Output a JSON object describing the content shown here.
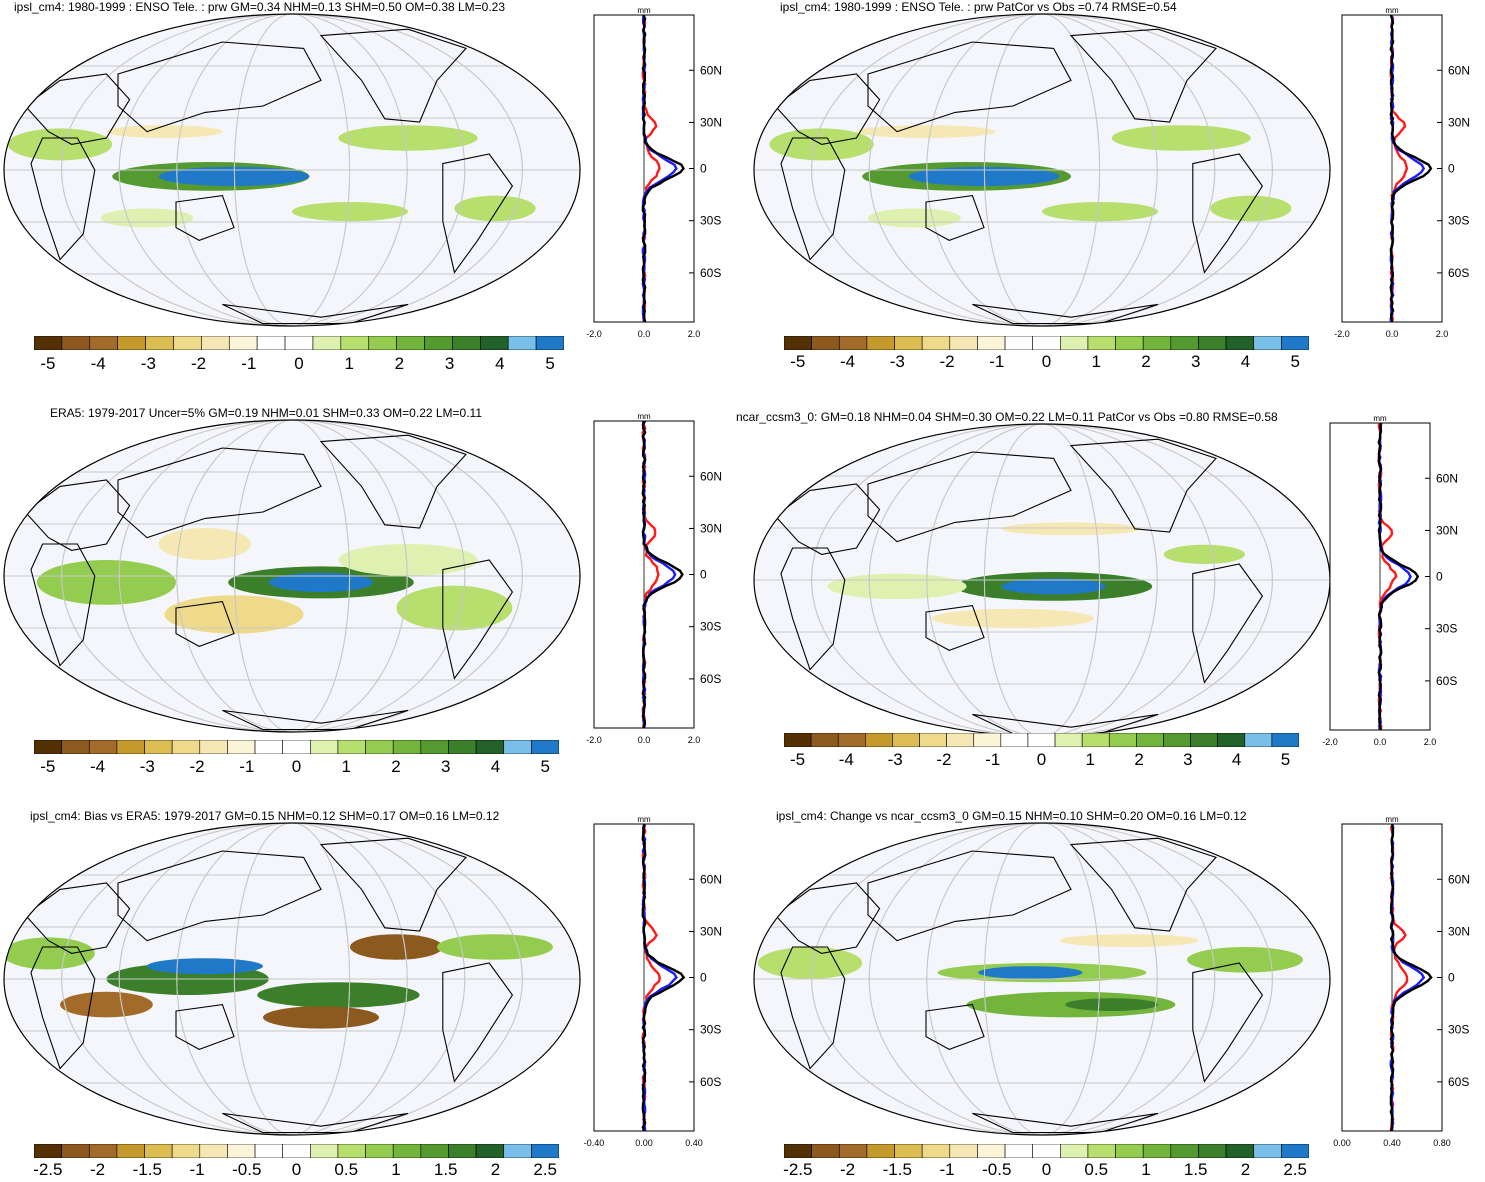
{
  "colors": {
    "bg": "#f5f6fb",
    "coast": "#000000",
    "grid": "#c8c8c8",
    "line_red": "#ff1a1a",
    "line_blue": "#1a1aff",
    "line_black": "#000000"
  },
  "colorbar_colors": [
    "#543005",
    "#8c5a1f",
    "#a36b29",
    "#c49a2c",
    "#dbbd53",
    "#efd98a",
    "#f6e8b5",
    "#fbf4d9",
    "#ffffff",
    "#ffffff",
    "#dff1b0",
    "#b7df6e",
    "#93cc4e",
    "#73b53c",
    "#549a31",
    "#3b7f2b",
    "#23612a",
    "#78bfea",
    "#1f78c8"
  ],
  "panels": [
    {
      "title": "ipsl_cm4: 1980-1999 : ENSO Tele. : prw GM=0.34 NHM=0.13 SHM=0.50 OM=0.38 LM=0.23",
      "colorbar_labels": [
        "-5",
        "-4",
        "-3",
        "-2",
        "-1",
        "0",
        "1",
        "2",
        "3",
        "4",
        "5"
      ],
      "zonal": {
        "unit": "mm",
        "x_ticks": [
          "-2.0",
          "0.0",
          "2.0"
        ],
        "y_ticks": [
          "60N",
          "30N",
          "0",
          "30S",
          "60S"
        ]
      }
    },
    {
      "title": "ipsl_cm4: 1980-1999 : ENSO Tele. : prw PatCor vs Obs =0.74 RMSE=0.54",
      "colorbar_labels": [
        "-5",
        "-4",
        "-3",
        "-2",
        "-1",
        "0",
        "1",
        "2",
        "3",
        "4",
        "5"
      ],
      "zonal": {
        "unit": "mm",
        "x_ticks": [
          "-2.0",
          "0.0",
          "2.0"
        ],
        "y_ticks": [
          "60N",
          "30N",
          "0",
          "30S",
          "60S"
        ]
      }
    },
    {
      "title": "ERA5: 1979-2017 Uncer=5% GM=0.19 NHM=0.01 SHM=0.33 OM=0.22 LM=0.11",
      "colorbar_labels": [
        "-5",
        "-4",
        "-3",
        "-2",
        "-1",
        "0",
        "1",
        "2",
        "3",
        "4",
        "5"
      ],
      "zonal": {
        "unit": "mm",
        "x_ticks": [
          "-2.0",
          "0.0",
          "2.0"
        ],
        "y_ticks": [
          "60N",
          "30N",
          "0",
          "30S",
          "60S"
        ]
      }
    },
    {
      "title": "ncar_ccsm3_0: GM=0.18 NHM=0.04 SHM=0.30 OM=0.22 LM=0.11 PatCor vs Obs =0.80 RMSE=0.58",
      "colorbar_labels": [
        "-5",
        "-4",
        "-3",
        "-2",
        "-1",
        "0",
        "1",
        "2",
        "3",
        "4",
        "5"
      ],
      "zonal": {
        "unit": "mm",
        "x_ticks": [
          "-2.0",
          "0.0",
          "2.0"
        ],
        "y_ticks": [
          "60N",
          "30N",
          "0",
          "30S",
          "60S"
        ]
      }
    },
    {
      "title": "ipsl_cm4: Bias vs ERA5: 1979-2017 GM=0.15 NHM=0.12 SHM=0.17 OM=0.16 LM=0.12",
      "colorbar_labels": [
        "-2.5",
        "-2",
        "-1.5",
        "-1",
        "-0.5",
        "0",
        "0.5",
        "1",
        "1.5",
        "2",
        "2.5"
      ],
      "zonal": {
        "unit": "mm",
        "x_ticks": [
          "-0.40",
          "0.00",
          "0.40"
        ],
        "y_ticks": [
          "60N",
          "30N",
          "0",
          "30S",
          "60S"
        ]
      }
    },
    {
      "title": "ipsl_cm4: Change vs ncar_ccsm3_0 GM=0.15 NHM=0.10 SHM=0.20 OM=0.16 LM=0.12",
      "colorbar_labels": [
        "-2.5",
        "-2",
        "-1.5",
        "-1",
        "-0.5",
        "0",
        "0.5",
        "1",
        "1.5",
        "2",
        "2.5"
      ],
      "zonal": {
        "unit": "mm",
        "x_ticks": [
          "0.00",
          "0.40",
          "0.80"
        ],
        "y_ticks": [
          "60N",
          "30N",
          "0",
          "30S",
          "60S"
        ]
      }
    }
  ]
}
